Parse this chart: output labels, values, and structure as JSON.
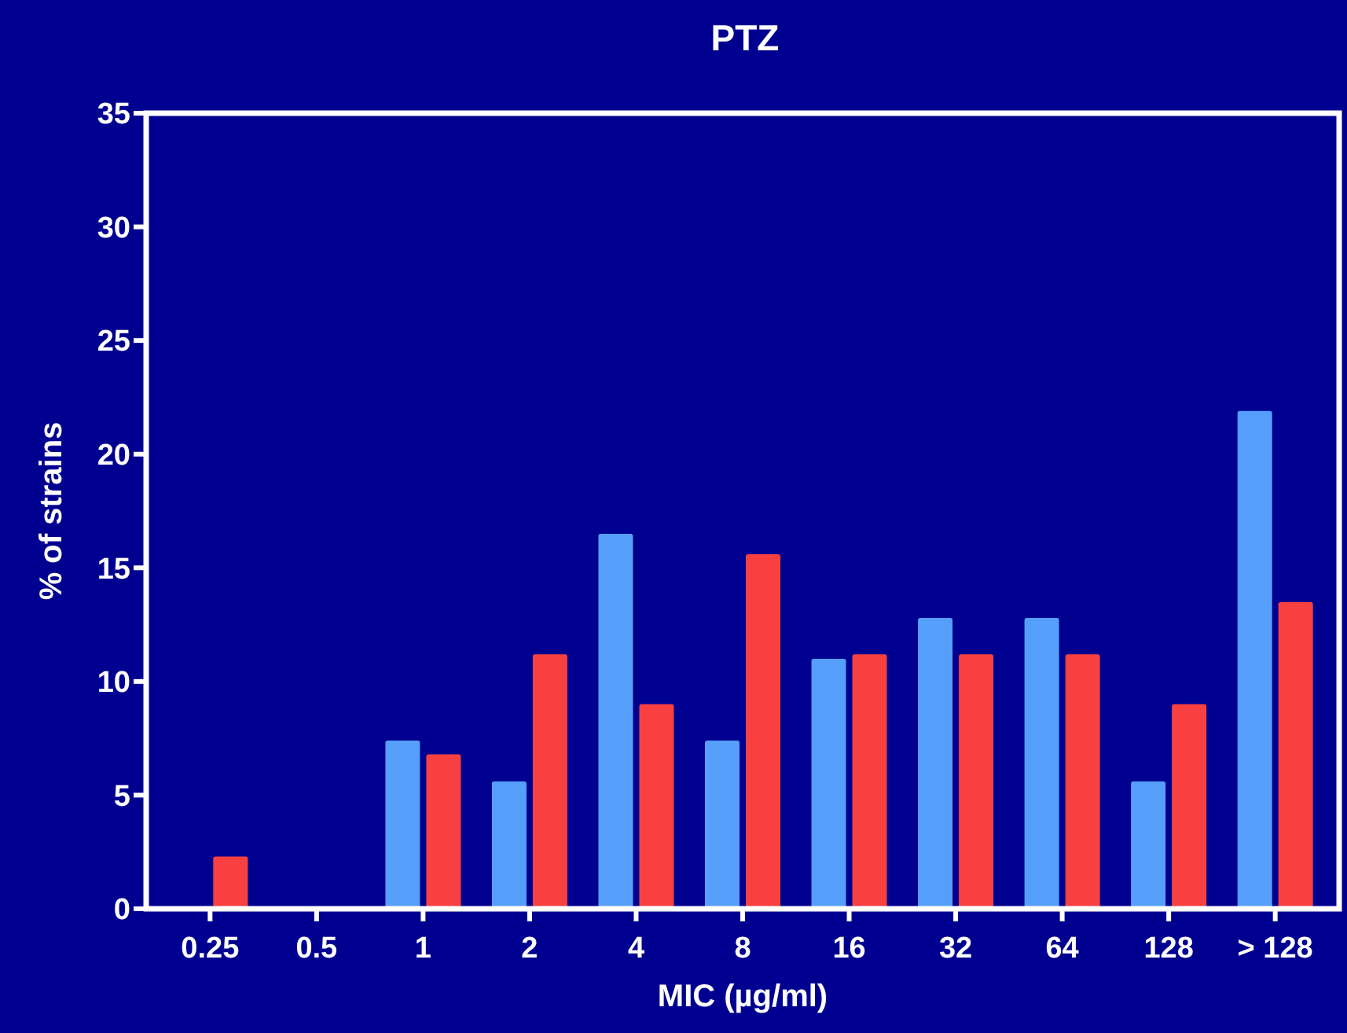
{
  "chart_data": {
    "type": "bar",
    "title": "PTZ",
    "xlabel": "MIC (µg/ml)",
    "ylabel": "% of strains",
    "categories": [
      "0.25",
      "0.5",
      "1",
      "2",
      "4",
      "8",
      "16",
      "32",
      "64",
      "128",
      "> 128"
    ],
    "series": [
      {
        "color": "#559ffa",
        "values": [
          0,
          0,
          7.4,
          5.6,
          16.5,
          7.4,
          11.0,
          12.8,
          12.8,
          5.6,
          21.9
        ]
      },
      {
        "color": "#f84040",
        "values": [
          2.3,
          0,
          6.8,
          11.2,
          9.0,
          15.6,
          11.2,
          11.2,
          11.2,
          9.0,
          13.5
        ]
      }
    ],
    "ylim": [
      0,
      35
    ],
    "yticks": [
      0,
      5,
      10,
      15,
      20,
      25,
      30,
      35
    ],
    "grid": false
  }
}
